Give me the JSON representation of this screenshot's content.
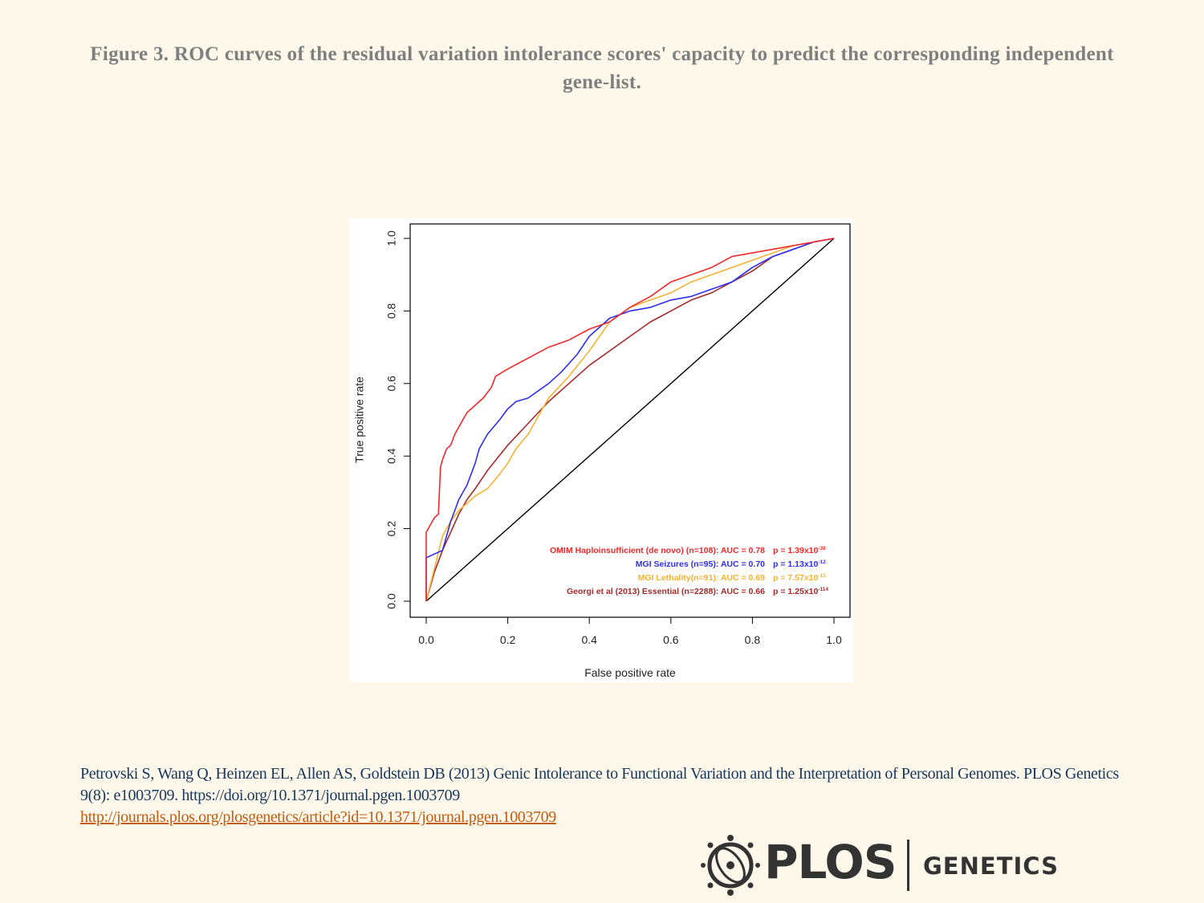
{
  "page": {
    "title": "Figure 3. ROC curves of the residual variation intolerance scores' capacity to predict the corresponding independent gene-list.",
    "citation": "Petrovski S, Wang Q, Heinzen EL, Allen AS, Goldstein DB (2013) Genic Intolerance to Functional Variation and the Interpretation of Personal Genomes. PLOS Genetics 9(8): e1003709. https://doi.org/10.1371/journal.pgen.1003709",
    "link": "http://journals.plos.org/plosgenetics/article?id=10.1371/journal.pgen.1003709",
    "logo": {
      "name": "PLOS",
      "subtitle": "GENETICS",
      "icon": "plos-logo-icon"
    }
  },
  "chart_data": {
    "type": "line",
    "xlabel": "False positive rate",
    "ylabel": "True positive rate",
    "xlim": [
      0,
      1
    ],
    "ylim": [
      0,
      1
    ],
    "xticks": [
      "0.0",
      "0.2",
      "0.4",
      "0.6",
      "0.8",
      "1.0"
    ],
    "yticks": [
      "0.0",
      "0.2",
      "0.4",
      "0.6",
      "0.8",
      "1.0"
    ],
    "grid": false,
    "legend_position": "bottom-right",
    "series": [
      {
        "name": "OMIM Haploinsufficient (de novo) (n=108): AUC = 0.78",
        "p_value": "p = 1.39x10",
        "p_exp": "-38",
        "color": "#ee2a2a",
        "x": [
          0.0,
          0.0,
          0.01,
          0.02,
          0.03,
          0.035,
          0.04,
          0.05,
          0.06,
          0.07,
          0.08,
          0.09,
          0.1,
          0.12,
          0.14,
          0.16,
          0.17,
          0.2,
          0.25,
          0.3,
          0.35,
          0.4,
          0.45,
          0.5,
          0.55,
          0.6,
          0.65,
          0.7,
          0.75,
          0.8,
          0.85,
          0.9,
          0.95,
          1.0
        ],
        "y": [
          0.0,
          0.19,
          0.21,
          0.23,
          0.24,
          0.37,
          0.39,
          0.42,
          0.43,
          0.46,
          0.48,
          0.5,
          0.52,
          0.54,
          0.56,
          0.59,
          0.62,
          0.64,
          0.67,
          0.7,
          0.72,
          0.75,
          0.77,
          0.81,
          0.84,
          0.88,
          0.9,
          0.92,
          0.95,
          0.96,
          0.97,
          0.98,
          0.99,
          1.0
        ]
      },
      {
        "name": "MGI Seizures (n=95): AUC = 0.70",
        "p_value": "p = 1.13x10",
        "p_exp": "-12",
        "color": "#2d2ded",
        "x": [
          0.0,
          0.0,
          0.02,
          0.04,
          0.05,
          0.06,
          0.07,
          0.08,
          0.1,
          0.12,
          0.13,
          0.15,
          0.18,
          0.2,
          0.22,
          0.25,
          0.3,
          0.33,
          0.37,
          0.4,
          0.45,
          0.5,
          0.55,
          0.6,
          0.65,
          0.7,
          0.75,
          0.8,
          0.85,
          0.9,
          0.95,
          1.0
        ],
        "y": [
          0.0,
          0.12,
          0.13,
          0.14,
          0.18,
          0.22,
          0.25,
          0.28,
          0.32,
          0.38,
          0.42,
          0.46,
          0.5,
          0.53,
          0.55,
          0.56,
          0.6,
          0.63,
          0.68,
          0.73,
          0.78,
          0.8,
          0.81,
          0.83,
          0.84,
          0.86,
          0.88,
          0.92,
          0.95,
          0.97,
          0.99,
          1.0
        ]
      },
      {
        "name": "MGI Lethality(n=91): AUC = 0.69",
        "p_value": "p = 7.57x10",
        "p_exp": "-13",
        "color": "#f4b234",
        "x": [
          0.0,
          0.02,
          0.04,
          0.06,
          0.08,
          0.1,
          0.12,
          0.15,
          0.18,
          0.2,
          0.22,
          0.25,
          0.28,
          0.3,
          0.35,
          0.4,
          0.45,
          0.5,
          0.55,
          0.6,
          0.65,
          0.7,
          0.75,
          0.8,
          0.85,
          0.9,
          0.95,
          1.0
        ],
        "y": [
          0.0,
          0.09,
          0.18,
          0.22,
          0.25,
          0.27,
          0.29,
          0.31,
          0.35,
          0.38,
          0.42,
          0.46,
          0.52,
          0.56,
          0.62,
          0.69,
          0.77,
          0.81,
          0.83,
          0.85,
          0.88,
          0.9,
          0.92,
          0.94,
          0.96,
          0.98,
          0.99,
          1.0
        ]
      },
      {
        "name": "Georgi et al (2013) Essential (n=2288): AUC = 0.66",
        "p_value": "p = 1.25x10",
        "p_exp": "-114",
        "color": "#a52a2a",
        "x": [
          0.0,
          0.02,
          0.04,
          0.06,
          0.08,
          0.1,
          0.12,
          0.15,
          0.2,
          0.25,
          0.3,
          0.35,
          0.4,
          0.45,
          0.5,
          0.55,
          0.6,
          0.65,
          0.7,
          0.75,
          0.8,
          0.85,
          0.9,
          0.95,
          1.0
        ],
        "y": [
          0.0,
          0.08,
          0.14,
          0.19,
          0.24,
          0.28,
          0.31,
          0.36,
          0.43,
          0.49,
          0.55,
          0.6,
          0.65,
          0.69,
          0.73,
          0.77,
          0.8,
          0.83,
          0.85,
          0.88,
          0.91,
          0.95,
          0.97,
          0.99,
          1.0
        ]
      },
      {
        "name": "",
        "color": "#000000",
        "x": [
          0.0,
          1.0
        ],
        "y": [
          0.0,
          1.0
        ]
      }
    ]
  }
}
